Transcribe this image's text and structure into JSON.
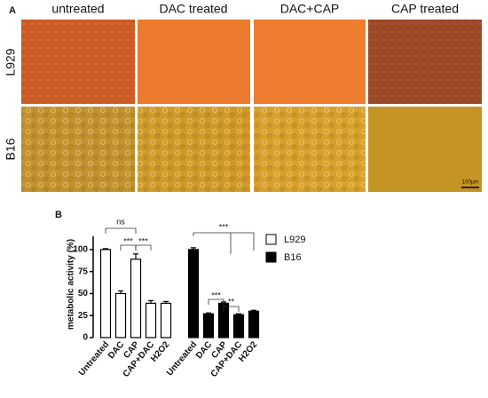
{
  "panel_a": {
    "label": "A",
    "columns": [
      "untreated",
      "DAC treated",
      "DAC+CAP",
      "CAP treated"
    ],
    "rows": [
      "L929",
      "B16"
    ],
    "scale_bar": "100μm"
  },
  "panel_b_label": "B",
  "chart_data": {
    "type": "bar",
    "categories": [
      "Untreated",
      "DAC",
      "CAP",
      "CAP+DAC",
      "H2O2",
      "Untreated",
      "DAC",
      "CAP",
      "CAP+DAC",
      "H2O2"
    ],
    "series": [
      {
        "name": "L929",
        "color": "#ffffff",
        "values": [
          100,
          50,
          89,
          39,
          39,
          null,
          null,
          null,
          null,
          null
        ],
        "errors": [
          1,
          3,
          6,
          3,
          2,
          null,
          null,
          null,
          null,
          null
        ]
      },
      {
        "name": "B16",
        "color": "#000000",
        "values": [
          null,
          null,
          null,
          null,
          null,
          100,
          27,
          39,
          26,
          30
        ],
        "errors": [
          null,
          null,
          null,
          null,
          null,
          2,
          1,
          1.5,
          1,
          1
        ]
      }
    ],
    "ylabel": "metabolic activity (%)",
    "ylim": [
      0,
      115
    ],
    "yticks": [
      0,
      25,
      50,
      75,
      100
    ],
    "legend": "right",
    "annotations": [
      "ns",
      "***",
      "***",
      "***",
      "***",
      "**"
    ]
  }
}
